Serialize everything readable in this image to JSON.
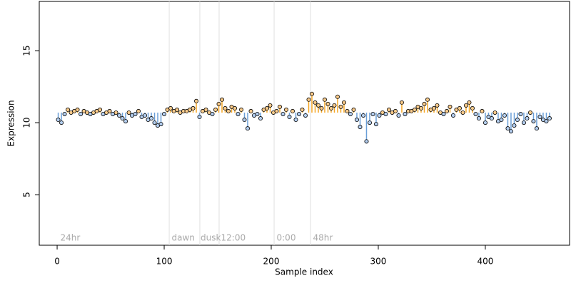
{
  "chart_data": {
    "type": "scatter",
    "xlabel": "Sample index",
    "ylabel": "Expression",
    "xlim": [
      -16.7,
      478.7
    ],
    "ylim": [
      1.49,
      18.42
    ],
    "xticks": [
      0,
      100,
      200,
      300,
      400
    ],
    "yticks": [
      5,
      10,
      15
    ],
    "baseline": 10.7,
    "color_above": "#f5a623",
    "color_below": "#6a9fd8",
    "point_fill_above": "#f7c98a",
    "point_fill_below": "#b3cdee",
    "vlines": [
      104.7,
      133.3,
      151.3,
      202.7,
      236.7
    ],
    "annotations": [
      {
        "x": 3,
        "text": "24hr"
      },
      {
        "x": 107,
        "text": "dawn"
      },
      {
        "x": 134,
        "text": "dusk"
      },
      {
        "x": 153,
        "text": "12:00"
      },
      {
        "x": 205,
        "text": "0:00"
      },
      {
        "x": 239,
        "text": "48hr"
      }
    ],
    "x": [
      1,
      4,
      7,
      10,
      13,
      16,
      19,
      22,
      25,
      28,
      31,
      34,
      37,
      40,
      43,
      46,
      49,
      52,
      55,
      58,
      61,
      64,
      67,
      70,
      73,
      76,
      79,
      82,
      85,
      88,
      91,
      94,
      97,
      100,
      103,
      106,
      109,
      112,
      115,
      118,
      121,
      124,
      127,
      130,
      133,
      136,
      139,
      142,
      145,
      148,
      151,
      154,
      157,
      160,
      163,
      166,
      169,
      172,
      175,
      178,
      181,
      184,
      187,
      190,
      193,
      196,
      199,
      202,
      205,
      208,
      211,
      214,
      217,
      220,
      223,
      226,
      229,
      232,
      235,
      238,
      241,
      244,
      247,
      250,
      253,
      256,
      259,
      262,
      265,
      268,
      271,
      274,
      277,
      280,
      283,
      286,
      289,
      292,
      295,
      298,
      301,
      304,
      307,
      310,
      313,
      316,
      319,
      322,
      325,
      328,
      331,
      334,
      337,
      340,
      343,
      346,
      349,
      352,
      355,
      358,
      361,
      364,
      367,
      370,
      373,
      376,
      379,
      382,
      385,
      388,
      391,
      394,
      397,
      400,
      403,
      406,
      409,
      412,
      415,
      418,
      421,
      424,
      427,
      430,
      433,
      436,
      439,
      442,
      445,
      448,
      451,
      454,
      457,
      460
    ],
    "values": [
      10.2,
      10.0,
      10.6,
      10.9,
      10.7,
      10.8,
      10.9,
      10.6,
      10.8,
      10.7,
      10.6,
      10.7,
      10.8,
      10.9,
      10.6,
      10.7,
      10.8,
      10.6,
      10.7,
      10.5,
      10.3,
      10.1,
      10.7,
      10.5,
      10.6,
      10.8,
      10.4,
      10.5,
      10.2,
      10.3,
      10.0,
      9.8,
      9.9,
      10.6,
      10.9,
      11.0,
      10.8,
      10.9,
      10.7,
      10.8,
      10.8,
      10.9,
      11.0,
      11.5,
      10.4,
      10.8,
      10.9,
      10.7,
      10.6,
      10.9,
      11.3,
      11.6,
      11.0,
      10.8,
      11.1,
      11.0,
      10.6,
      10.9,
      10.2,
      9.6,
      10.8,
      10.5,
      10.6,
      10.3,
      10.9,
      11.0,
      11.2,
      10.7,
      10.8,
      11.1,
      10.6,
      10.9,
      10.4,
      10.8,
      10.2,
      10.6,
      10.9,
      10.5,
      11.6,
      12.0,
      11.4,
      11.2,
      11.0,
      11.6,
      11.3,
      11.0,
      11.2,
      11.8,
      11.1,
      11.4,
      10.8,
      10.6,
      10.9,
      10.2,
      9.7,
      10.5,
      8.7,
      10.0,
      10.6,
      9.9,
      10.5,
      10.7,
      10.6,
      10.9,
      10.7,
      10.8,
      10.5,
      11.4,
      10.6,
      10.8,
      10.8,
      10.9,
      11.1,
      11.0,
      11.3,
      11.6,
      10.9,
      11.0,
      11.2,
      10.7,
      10.6,
      10.8,
      11.1,
      10.5,
      10.9,
      11.0,
      10.7,
      11.2,
      11.4,
      11.0,
      10.6,
      10.3,
      10.8,
      10.0,
      10.4,
      10.3,
      10.7,
      10.1,
      10.2,
      10.5,
      9.6,
      9.4,
      9.8,
      10.2,
      10.6,
      10.0,
      10.3,
      10.7,
      10.1,
      9.6,
      10.4,
      10.2,
      10.1,
      10.3
    ]
  }
}
